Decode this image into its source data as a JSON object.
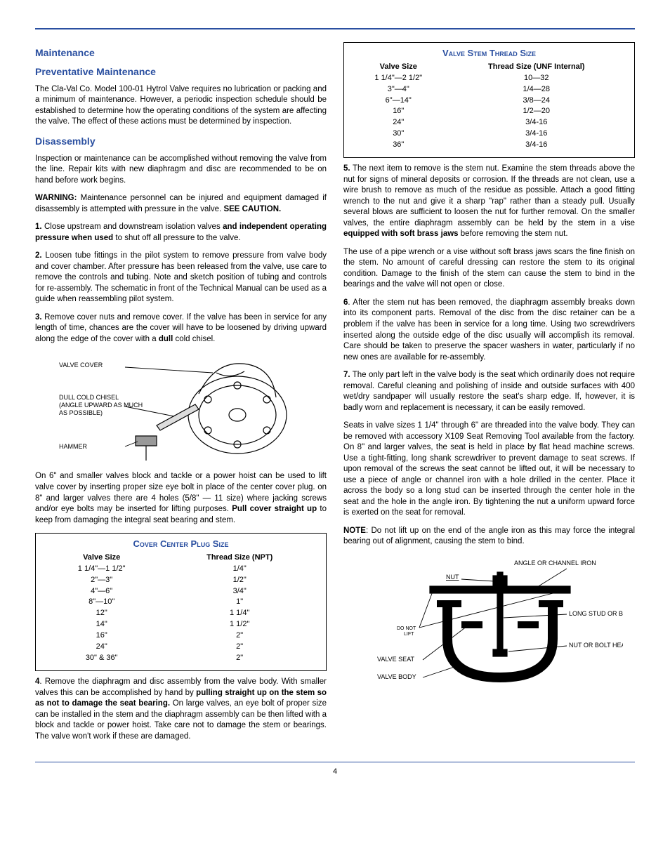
{
  "colors": {
    "accent": "#2a4fa0",
    "text": "#000000",
    "background": "#ffffff"
  },
  "left": {
    "h_maintenance": "Maintenance",
    "h_preventative": "Preventative Maintenance",
    "p_preventative": "The Cla-Val Co. Model 100-01 Hytrol Valve requires no lubrication or packing and a minimum of maintenance. However, a periodic inspection schedule should be established to determine how the operating conditions of the system are affecting the valve. The effect of these actions must be determined by inspection.",
    "h_disassembly": "Disassembly",
    "p_disassembly_intro": "Inspection or maintenance can be accomplished without removing the valve from the line.  Repair kits with new diaphragm and disc are recommended to be on hand before work begins.",
    "warning_label": "WARNING:",
    "warning_text": " Maintenance personnel can be injured and equipment damaged if disassembly is attempted with pressure in the valve. ",
    "warning_see": "SEE CAUTION.",
    "step1_a": "1.",
    "step1_b": " Close upstream and downstream isolation valves ",
    "step1_c": "and independent operating pressure when used",
    "step1_d": " to shut off all pressure to the valve.",
    "step2_a": "2.",
    "step2_b": " Loosen tube fittings in the pilot system to remove pressure from valve body and cover chamber. After pressure has been released from the valve, use care to remove the controls and tubing. Note and sketch  position of tubing and controls for re-assembly. The schematic in front of the Technical Manual can be used as a guide when reassembling pilot system.",
    "step3_a": "3.",
    "step3_b": " Remove cover nuts and remove cover. If the valve has been in service for any length of time, chances are the cover will have to be loosened by driving upward along the edge of the cover with a ",
    "step3_c": "dull",
    "step3_d": " cold chisel.",
    "diagram1": {
      "valve_cover": "VALVE COVER",
      "chisel_l1": "DULL COLD CHISEL",
      "chisel_l2": "(ANGLE UPWARD AS MUCH",
      "chisel_l3": "AS POSSIBLE)",
      "hammer": "HAMMER"
    },
    "p_after_diagram_a": "On 6\" and smaller valves block and tackle or a power hoist can be used to lift valve cover by inserting proper size eye bolt in place of the center cover plug. on 8\" and larger valves there are 4 holes (5/8\" — 11 size) where jacking screws and/or eye bolts  may be inserted for lifting purposes. ",
    "p_after_diagram_b": "Pull cover straight up",
    "p_after_diagram_c": " to keep from damaging the  integral seat bearing and stem.",
    "table1": {
      "title": "Cover Center Plug Size",
      "col1": "Valve Size",
      "col2": "Thread Size (NPT)",
      "rows": [
        [
          "1 1/4\"—1 1/2\"",
          "1/4\""
        ],
        [
          "2\"—3\"",
          "1/2\""
        ],
        [
          "4\"—6\"",
          "3/4\""
        ],
        [
          "8\"—10\"",
          "1\""
        ],
        [
          "12\"",
          "1 1/4\""
        ],
        [
          "14\"",
          "1 1/2\""
        ],
        [
          "16\"",
          "2\""
        ],
        [
          "24\"",
          "2\""
        ],
        [
          "30\" & 36\"",
          "2\""
        ]
      ]
    },
    "step4_a": "4",
    "step4_b": ". Remove the diaphragm and disc assembly from the valve body. With smaller valves this can be accomplished by hand by ",
    "step4_c": "pulling straight up on the stem so as not to damage the seat bearing.",
    "step4_d": " On large valves, an eye bolt of proper size can be installed in the stem and the diaphragm assembly can be then lifted with a block and tackle or power hoist. Take care not to damage the stem or bearings. The valve won't work if these are damaged."
  },
  "right": {
    "table2": {
      "title": "Valve Stem Thread Size",
      "col1": "Valve Size",
      "col2": "Thread Size (UNF Internal)",
      "rows": [
        [
          "1 1/4\"—2 1/2\"",
          "10—32"
        ],
        [
          "3\"—4\"",
          "1/4—28"
        ],
        [
          "6\"—14\"",
          "3/8—24"
        ],
        [
          "16\"",
          "1/2—20"
        ],
        [
          "24\"",
          "3/4-16"
        ],
        [
          "30\"",
          "3/4-16"
        ],
        [
          "36\"",
          "3/4-16"
        ]
      ]
    },
    "step5_a": "5.",
    "step5_b": " The next item to remove is the stem nut. Examine the stem threads above the nut for signs of mineral deposits or corrosion. If the threads are not clean, use a wire brush to remove as much of the residue as possible. Attach a good fitting wrench to the nut and give it a sharp \"rap\" rather than a steady pull. Usually several blows are sufficient to loosen the nut for further removal. On the smaller valves, the entire diaphragm assembly can be held by the stem in a vise ",
    "step5_c": "equipped with soft brass jaws",
    "step5_d": " before removing the stem nut.",
    "p_pipewrench": "The use of a pipe wrench or a vise without soft brass jaws scars the fine finish on the stem. No amount of careful dressing can restore the stem to its original condition. Damage to the finish of the stem can cause the stem to bind in the bearings and the valve will not open or close.",
    "step6_a": "6",
    "step6_b": ". After the stem nut has been removed, the diaphragm assembly breaks down into its component parts. Removal of the disc from the disc retainer can be a problem if the valve has been in service for a long time. Using two screwdrivers inserted along the outside edge of the disc usually will accomplish its removal. Care should be taken to preserve the spacer washers in water, particularly if no new ones are available for re-assembly.",
    "step7_a": "7.",
    "step7_b": " The only part left in the valve body is the seat which ordinarily does not require removal. Careful cleaning and polishing of inside and outside surfaces with 400 wet/dry sandpaper will usually restore the seat's sharp edge. If, however, it is badly worn and replacement is necessary, it can be easily removed.",
    "p_seats": "Seats in valve sizes 1 1/4\" through 6\" are threaded into the valve body.  They can be removed with accessory X109 Seat Removing Tool available from the factory. On 8\" and larger valves, the seat is held in place by flat head machine screws.  Use a tight-fitting, long shank screwdriver to prevent damage to seat screws. If upon removal of the screws the seat cannot be lifted out, it will be necessary to use a piece of angle or channel iron with a hole drilled in the center. Place it across the body so a long stud can be inserted through the  center hole in the seat and the hole in the angle iron. By tightening the nut a uniform upward force is exerted on the seat for removal.",
    "note_label": "NOTE",
    "note_text": ": Do not lift up on the end of the angle iron as this may force the integral bearing out of alignment, causing the stem to bind.",
    "diagram2": {
      "angle_iron": "ANGLE OR CHANNEL IRON",
      "nut": "NUT",
      "long_stud": "LONG STUD OR BOLT",
      "do_not_lift": "DO NOT\nLIFT",
      "nut_head": "NUT OR BOLT HEAD",
      "valve_seat": "VALVE SEAT",
      "valve_body": "VALVE BODY"
    }
  },
  "page_number": "4"
}
